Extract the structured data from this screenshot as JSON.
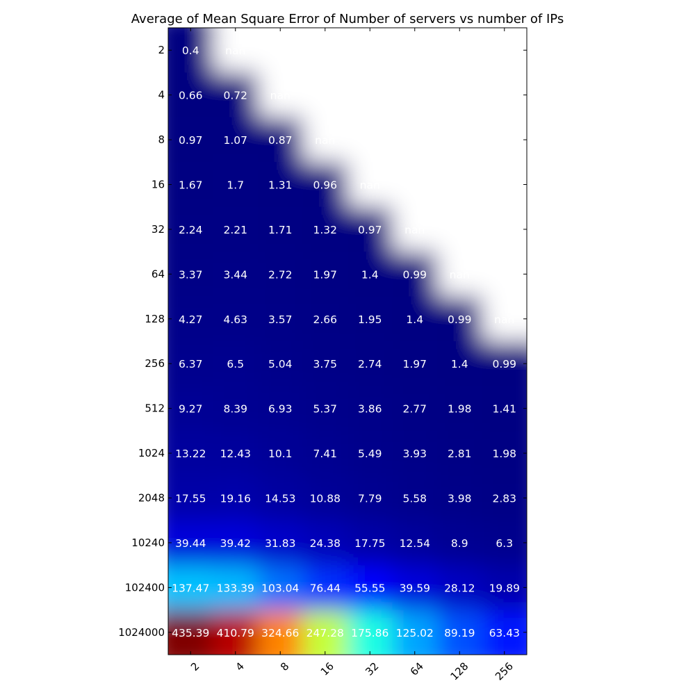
{
  "chart_data": {
    "type": "heatmap",
    "title": "Average of Mean Square Error of Number of servers vs number of IPs",
    "xlabel": "",
    "ylabel": "",
    "x_tick_labels": [
      "2",
      "4",
      "8",
      "16",
      "32",
      "64",
      "128",
      "256"
    ],
    "y_tick_labels": [
      "2",
      "4",
      "8",
      "16",
      "32",
      "64",
      "128",
      "256",
      "512",
      "1024",
      "2048",
      "10240",
      "102400",
      "1024000"
    ],
    "colormap": "jet",
    "nan_label": "nan",
    "value_range": [
      0.4,
      435.39
    ],
    "values": [
      [
        0.4,
        null,
        null,
        null,
        null,
        null,
        null,
        null
      ],
      [
        0.66,
        0.72,
        null,
        null,
        null,
        null,
        null,
        null
      ],
      [
        0.97,
        1.07,
        0.87,
        null,
        null,
        null,
        null,
        null
      ],
      [
        1.67,
        1.7,
        1.31,
        0.96,
        null,
        null,
        null,
        null
      ],
      [
        2.24,
        2.21,
        1.71,
        1.32,
        0.97,
        null,
        null,
        null
      ],
      [
        3.37,
        3.44,
        2.72,
        1.97,
        1.4,
        0.99,
        null,
        null
      ],
      [
        4.27,
        4.63,
        3.57,
        2.66,
        1.95,
        1.4,
        0.99,
        null
      ],
      [
        6.37,
        6.5,
        5.04,
        3.75,
        2.74,
        1.97,
        1.4,
        0.99
      ],
      [
        9.27,
        8.39,
        6.93,
        5.37,
        3.86,
        2.77,
        1.98,
        1.41
      ],
      [
        13.22,
        12.43,
        10.1,
        7.41,
        5.49,
        3.93,
        2.81,
        1.98
      ],
      [
        17.55,
        19.16,
        14.53,
        10.88,
        7.79,
        5.58,
        3.98,
        2.83
      ],
      [
        39.44,
        39.42,
        31.83,
        24.38,
        17.75,
        12.54,
        8.9,
        6.3
      ],
      [
        137.47,
        133.39,
        103.04,
        76.44,
        55.55,
        39.59,
        28.12,
        19.89
      ],
      [
        435.39,
        410.79,
        324.66,
        247.28,
        175.86,
        125.02,
        89.19,
        63.43
      ]
    ],
    "grid": false,
    "legend": "none"
  }
}
